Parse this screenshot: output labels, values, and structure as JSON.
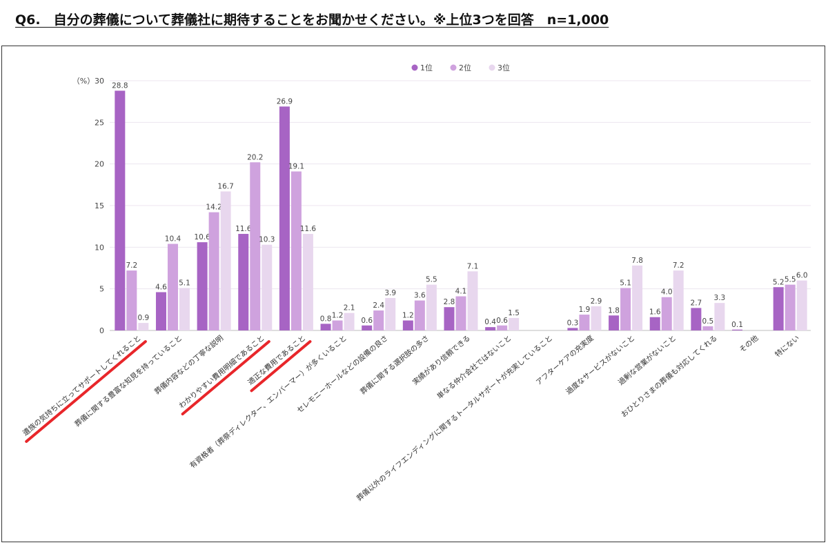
{
  "title": "Q6.　自分の葬儀について葬儀社に期待することをお聞かせください。※上位3つを回答　n=1,000",
  "chart_data": {
    "type": "bar",
    "unit_label": "（%）",
    "ylim": [
      0,
      30
    ],
    "yticks": [
      0,
      5,
      10,
      15,
      20,
      25,
      30
    ],
    "grid": true,
    "legend_position": "top-center",
    "categories": [
      "遺族の気持ちに立ってサポートしてくれること",
      "葬儀に関する豊富な知見を持っていること",
      "葬儀内容などの丁寧な説明",
      "わかりやすい費用明細であること",
      "適正な費用であること",
      "有資格者（葬祭ディレクター、エンバーマー）が多くいること",
      "セレモニーホールなどの設備の良さ",
      "葬儀に関する選択肢の多さ",
      "実績があり信頼できる",
      "単なる仲介会社ではないこと",
      "葬儀以外のライフエンディングに関するトータルサポートが充実していること",
      "アフターケアの充実度",
      "過度なサービスがないこと",
      "過剰な営業がないこと",
      "おひとりさまの葬儀も対応してくれる",
      "その他",
      "特にない"
    ],
    "series": [
      {
        "name": "1位",
        "color": "#a764c4",
        "values": [
          28.8,
          4.6,
          10.6,
          11.6,
          26.9,
          0.8,
          0.6,
          1.2,
          2.8,
          0.4,
          null,
          0.3,
          1.8,
          1.6,
          2.7,
          0.1,
          5.2
        ]
      },
      {
        "name": "2位",
        "color": "#cfa2de",
        "values": [
          7.2,
          10.4,
          14.2,
          20.2,
          19.1,
          1.2,
          2.4,
          3.6,
          4.1,
          0.6,
          null,
          1.9,
          5.1,
          4.0,
          0.5,
          null,
          5.5
        ]
      },
      {
        "name": "3位",
        "color": "#e8d7ee",
        "values": [
          0.9,
          5.1,
          16.7,
          10.3,
          11.6,
          2.1,
          3.9,
          5.5,
          7.1,
          1.5,
          null,
          2.9,
          7.8,
          7.2,
          3.3,
          null,
          6.0
        ]
      }
    ],
    "highlighted_categories": [
      0,
      3,
      4
    ],
    "highlight_color": "#e8262a"
  }
}
